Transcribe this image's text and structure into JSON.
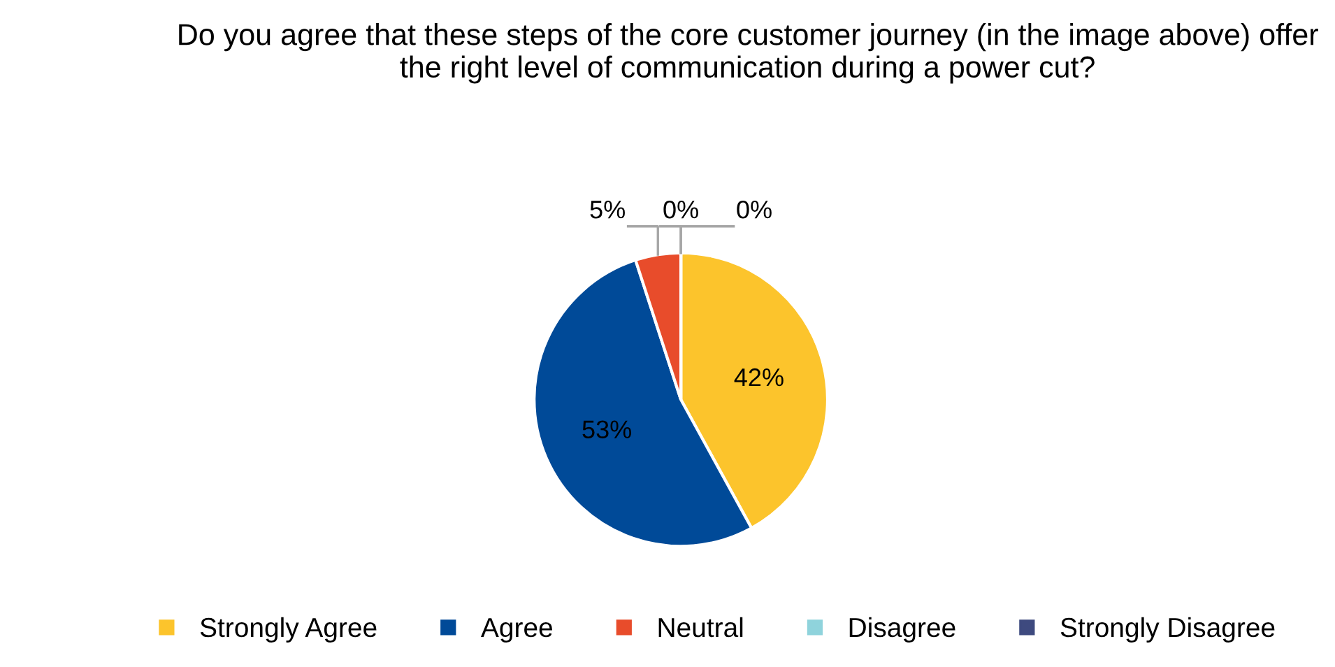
{
  "chart_data": {
    "type": "pie",
    "title": "Do you agree that these steps of the core customer journey (in the image above) offer the right level of communication during a power cut?",
    "categories": [
      "Strongly Agree",
      "Agree",
      "Neutral",
      "Disagree",
      "Strongly Disagree"
    ],
    "values": [
      42,
      53,
      5,
      0,
      0
    ],
    "colors": [
      "#fcc42c",
      "#004a98",
      "#e84c2b",
      "#8fd3dc",
      "#3e4a7f"
    ],
    "value_labels": [
      "42%",
      "53%",
      "5%",
      "0%",
      "0%"
    ],
    "legend": "bottom"
  }
}
